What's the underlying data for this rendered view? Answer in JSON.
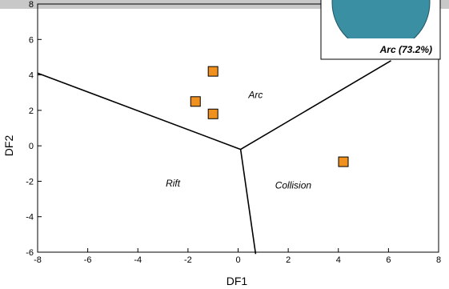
{
  "chart_data": {
    "type": "scatter",
    "title": "",
    "xlabel": "DF1",
    "ylabel": "DF2",
    "xlim": [
      -8,
      8
    ],
    "ylim": [
      -6,
      8
    ],
    "x_ticks": [
      "-8",
      "-6",
      "-4",
      "-2",
      "0",
      "2",
      "4",
      "6",
      "8"
    ],
    "y_ticks": [
      "-6",
      "-4",
      "-2",
      "0",
      "2",
      "4",
      "6",
      "8"
    ],
    "x_tick_values": [
      -8,
      -6,
      -4,
      -2,
      0,
      2,
      4,
      6,
      8
    ],
    "y_tick_values": [
      -6,
      -4,
      -2,
      0,
      2,
      4,
      6,
      8
    ],
    "grid": false,
    "points": [
      {
        "x": -1.0,
        "y": 4.2
      },
      {
        "x": -1.7,
        "y": 2.5
      },
      {
        "x": -1.0,
        "y": 1.8
      },
      {
        "x": 4.2,
        "y": -0.9
      }
    ],
    "marker_color": "#f0901e",
    "boundaries": [
      {
        "from": [
          0.1,
          -0.2
        ],
        "to": [
          -8,
          4.1
        ]
      },
      {
        "from": [
          0.1,
          -0.2
        ],
        "to": [
          6.1,
          4.8
        ]
      },
      {
        "from": [
          0.1,
          -0.2
        ],
        "to": [
          0.7,
          -6.1
        ]
      }
    ],
    "field_labels": [
      {
        "text": "Arc",
        "x": 0.7,
        "y": 2.7
      },
      {
        "text": "Rift",
        "x": -2.6,
        "y": -2.3
      },
      {
        "text": "Collision",
        "x": 2.2,
        "y": -2.4
      }
    ],
    "inset": {
      "type": "pie",
      "label": "Arc (73.2%)",
      "slices": [
        {
          "name": "Arc",
          "value": 73.2,
          "color": "#3a8fa3"
        }
      ]
    }
  }
}
